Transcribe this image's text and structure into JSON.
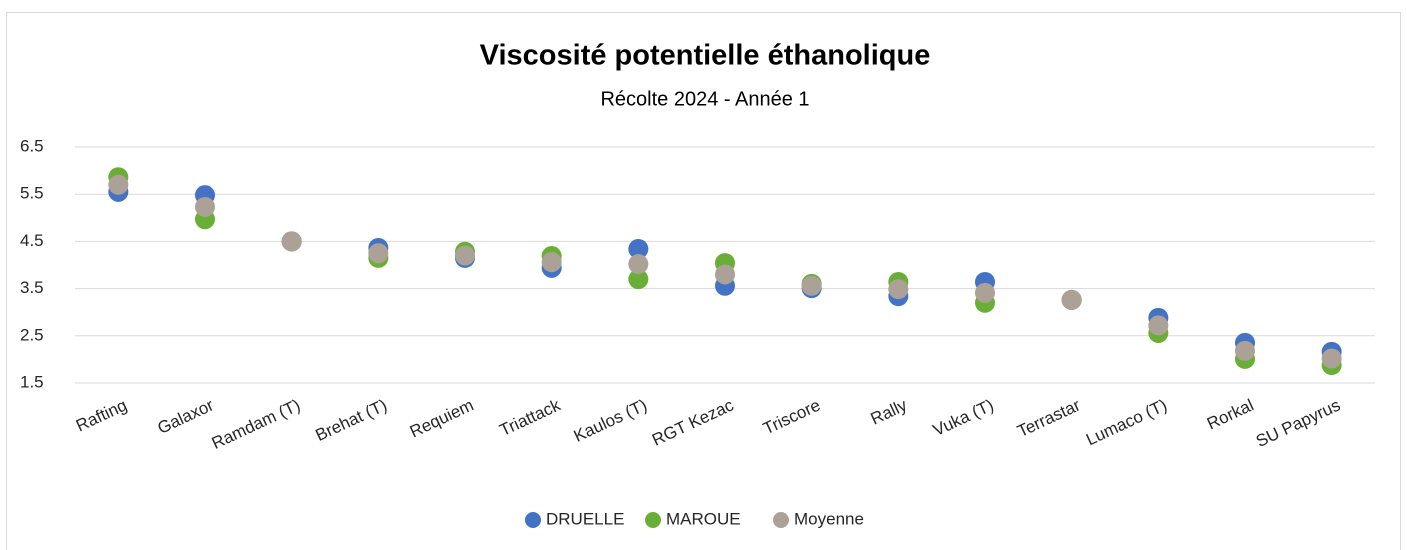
{
  "chart_data": {
    "type": "scatter",
    "title": "Viscosité potentielle éthanolique",
    "subtitle": "Récolte 2024 - Année 1",
    "categories": [
      "Rafting",
      "Galaxor",
      "Ramdam (T)",
      "Brehat (T)",
      "Requiem",
      "Triattack",
      "Kaulos (T)",
      "RGT Kezac",
      "Triscore",
      "Rally",
      "Vuka (T)",
      "Terrastar",
      "Lumaco (T)",
      "Rorkal",
      "SU Papyrus"
    ],
    "series": [
      {
        "name": "DRUELLE",
        "color": "#4472c4",
        "values": [
          5.55,
          5.48,
          4.5,
          4.36,
          4.15,
          3.94,
          4.34,
          3.56,
          3.51,
          3.34,
          3.64,
          3.26,
          2.88,
          2.35,
          2.16
        ]
      },
      {
        "name": "MAROUE",
        "color": "#6aaf35",
        "values": [
          5.86,
          4.97,
          4.5,
          4.15,
          4.28,
          4.19,
          3.7,
          4.04,
          3.6,
          3.64,
          3.2,
          3.26,
          2.56,
          2.01,
          1.88
        ]
      },
      {
        "name": "Moyenne",
        "color": "#aba197",
        "values": [
          5.7,
          5.23,
          4.5,
          4.25,
          4.2,
          4.06,
          4.02,
          3.8,
          3.56,
          3.49,
          3.41,
          3.26,
          2.72,
          2.18,
          2.02
        ]
      }
    ],
    "ylim": [
      1.5,
      6.5
    ],
    "yticks": [
      1.5,
      2.5,
      3.5,
      4.5,
      5.5,
      6.5
    ],
    "grid": true,
    "legend": "bottom"
  }
}
